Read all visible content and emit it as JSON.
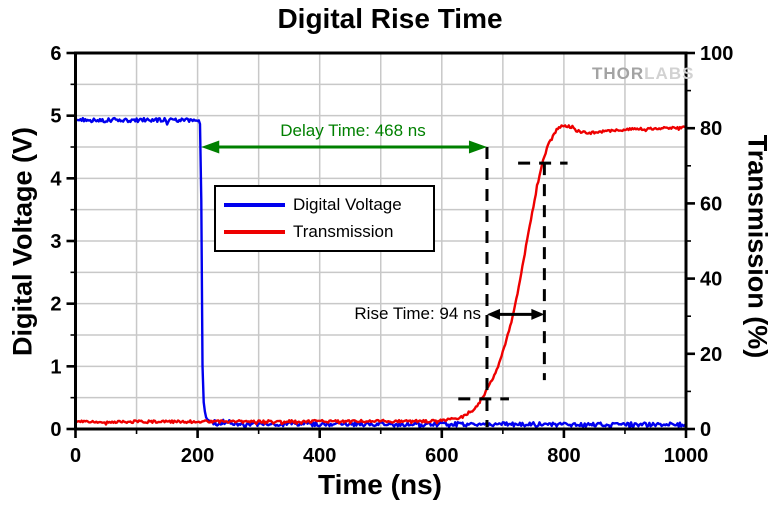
{
  "title": "Digital Rise Time",
  "watermark": {
    "part1": "THOR",
    "part2": "LABS"
  },
  "legend": {
    "items": [
      {
        "label": "Digital Voltage",
        "color": "#0000ee"
      },
      {
        "label": "Transmission",
        "color": "#ee0000"
      }
    ]
  },
  "chart_data": {
    "type": "line",
    "title": "Digital Rise Time",
    "x_axis": {
      "label": "Time (ns)",
      "range": [
        0,
        1000
      ],
      "major_ticks": [
        0,
        200,
        400,
        600,
        800,
        1000
      ],
      "minor_step": 100
    },
    "y_left": {
      "label": "Digital Voltage (V)",
      "range": [
        0,
        6
      ],
      "major_ticks": [
        0,
        1,
        2,
        3,
        4,
        5,
        6
      ],
      "minor_step": 0.5
    },
    "y_right": {
      "label": "Transmission (%)",
      "range": [
        0,
        100
      ],
      "major_ticks": [
        0,
        20,
        40,
        60,
        80,
        100
      ],
      "minor_step": 10
    },
    "grid": {
      "show": true,
      "color": "#c8c8c8",
      "x_step_ns": 100,
      "y_step_V": 0.5
    },
    "legend_position": "upper-left-of-center",
    "series": [
      {
        "name": "Digital Voltage",
        "axis": "left",
        "color": "#0000ee",
        "noise": 0.034,
        "points": [
          [
            0,
            4.93
          ],
          [
            198,
            4.93
          ],
          [
            205,
            4.88
          ],
          [
            206.5,
            3.0
          ],
          [
            208,
            1.0
          ],
          [
            210,
            0.45
          ],
          [
            213,
            0.22
          ],
          [
            218,
            0.12
          ],
          [
            226,
            0.08
          ],
          [
            1000,
            0.07
          ]
        ]
      },
      {
        "name": "Transmission",
        "axis": "right",
        "color": "#ee0000",
        "noise": 0.35,
        "points": [
          [
            0,
            1.9
          ],
          [
            580,
            2.1
          ],
          [
            605,
            2.3
          ],
          [
            630,
            3.0
          ],
          [
            648,
            4.5
          ],
          [
            660,
            6.5
          ],
          [
            665,
            8.0
          ],
          [
            674,
            10.5
          ],
          [
            684,
            13.5
          ],
          [
            694,
            17.5
          ],
          [
            704,
            22.5
          ],
          [
            714,
            28.5
          ],
          [
            724,
            36.0
          ],
          [
            734,
            45.0
          ],
          [
            744,
            54.0
          ],
          [
            752,
            61.0
          ],
          [
            760,
            67.5
          ],
          [
            766,
            71.5
          ],
          [
            772,
            74.5
          ],
          [
            780,
            77.5
          ],
          [
            788,
            79.6
          ],
          [
            796,
            80.6
          ],
          [
            804,
            80.7
          ],
          [
            812,
            80.2
          ],
          [
            822,
            79.3
          ],
          [
            836,
            78.7
          ],
          [
            850,
            78.8
          ],
          [
            868,
            79.3
          ],
          [
            900,
            79.6
          ],
          [
            940,
            79.9
          ],
          [
            970,
            80.1
          ],
          [
            1000,
            80.4
          ]
        ]
      }
    ],
    "annotations": {
      "delay": {
        "label": "Delay Time: 468 ns",
        "value_ns": 468,
        "color": "#008000",
        "x1_ns": 206,
        "x2_ns": 674,
        "y_V": 4.5
      },
      "rise": {
        "label": "Rise Time: 94 ns",
        "value_ns": 94,
        "color": "#000000",
        "x1_ns": 674,
        "x2_ns": 768,
        "y_pct": 30.5
      },
      "dashed_lines": [
        {
          "type": "v",
          "x_ns": 674,
          "y_from_pct": 75.0,
          "y_to_pct": 0.5
        },
        {
          "type": "v",
          "x_ns": 768,
          "y_from_pct": 70.7,
          "y_to_pct": 13.0
        },
        {
          "type": "h",
          "y_pct": 70.7,
          "x_from_ns": 725,
          "x_to_ns": 806
        },
        {
          "type": "h",
          "y_pct": 8.0,
          "x_from_ns": 627,
          "x_to_ns": 710
        }
      ]
    }
  }
}
